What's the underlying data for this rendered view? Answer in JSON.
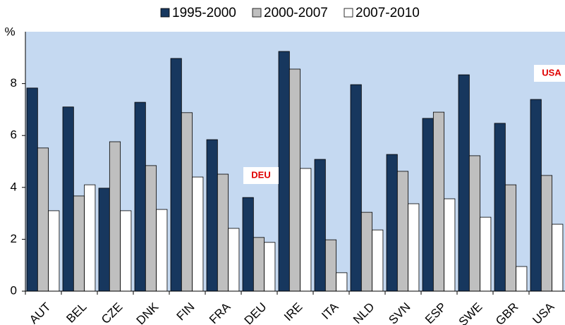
{
  "chart_data": {
    "type": "bar",
    "y_axis_label": "%",
    "categories": [
      "AUT",
      "BEL",
      "CZE",
      "DNK",
      "FIN",
      "FRA",
      "DEU",
      "IRE",
      "ITA",
      "NLD",
      "SVN",
      "ESP",
      "SWE",
      "GBR",
      "USA"
    ],
    "series": [
      {
        "name": "1995-2000",
        "color": "#17375e",
        "values": [
          7.83,
          7.1,
          3.97,
          7.28,
          8.97,
          5.84,
          3.61,
          9.24,
          5.08,
          7.96,
          5.27,
          6.66,
          8.34,
          6.47,
          7.39
        ]
      },
      {
        "name": "2000-2007",
        "color": "#bfbfbf",
        "values": [
          5.52,
          3.67,
          5.76,
          4.84,
          6.88,
          4.51,
          2.07,
          8.56,
          1.98,
          3.04,
          4.62,
          6.9,
          5.22,
          4.1,
          4.46
        ]
      },
      {
        "name": "2007-2010",
        "color": "#ffffff",
        "values": [
          3.1,
          4.1,
          3.1,
          3.15,
          4.4,
          2.42,
          1.88,
          4.73,
          0.71,
          2.36,
          3.37,
          3.56,
          2.85,
          0.95,
          2.58
        ]
      }
    ],
    "ylim": [
      0,
      10
    ],
    "yticks": [
      0,
      2,
      4,
      6,
      8
    ],
    "annotations": [
      "DEU",
      "USA"
    ],
    "plot_background": "#c5d9f1",
    "legend": "top"
  }
}
